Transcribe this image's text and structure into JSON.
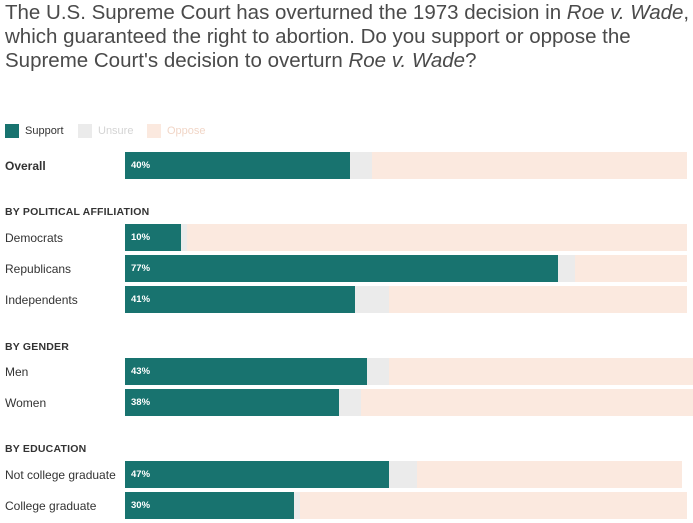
{
  "title": {
    "part1": "The U.S. Supreme Court has overturned the 1973 decision in ",
    "italic1": "Roe v. Wade",
    "part2": ", which guaranteed the right to abortion. Do you support or oppose the Supreme Court's decision to overturn ",
    "italic2": "Roe v. Wade",
    "part3": "?"
  },
  "colors": {
    "support": "#18736f",
    "unsure": "#ebebeb",
    "oppose": "#fbe9df"
  },
  "chart_data": {
    "type": "bar",
    "stacked": true,
    "orientation": "horizontal",
    "legend": [
      "Support",
      "Unsure",
      "Oppose"
    ],
    "legend_placement": "top-left",
    "groups": [
      {
        "heading": "",
        "rows": [
          {
            "label": "Overall",
            "bold": true,
            "support": 40,
            "unsure": 4,
            "oppose": 56,
            "support_label": "40%"
          }
        ]
      },
      {
        "heading": "BY POLITICAL AFFILIATION",
        "rows": [
          {
            "label": "Democrats",
            "bold": false,
            "support": 10,
            "unsure": 1,
            "oppose": 89,
            "support_label": "10%"
          },
          {
            "label": "Republicans",
            "bold": false,
            "support": 77,
            "unsure": 3,
            "oppose": 20,
            "support_label": "77%"
          },
          {
            "label": "Independents",
            "bold": false,
            "support": 41,
            "unsure": 6,
            "oppose": 53,
            "support_label": "41%"
          }
        ]
      },
      {
        "heading": "BY GENDER",
        "rows": [
          {
            "label": "Men",
            "bold": false,
            "support": 43,
            "unsure": 4,
            "oppose": 54,
            "support_label": "43%"
          },
          {
            "label": "Women",
            "bold": false,
            "support": 38,
            "unsure": 4,
            "oppose": 59,
            "support_label": "38%"
          }
        ]
      },
      {
        "heading": "BY EDUCATION",
        "rows": [
          {
            "label": "Not college graduate",
            "bold": false,
            "support": 47,
            "unsure": 5,
            "oppose": 47,
            "support_label": "47%"
          },
          {
            "label": "College graduate",
            "bold": false,
            "support": 30,
            "unsure": 1,
            "oppose": 69,
            "support_label": "30%"
          }
        ]
      }
    ]
  }
}
